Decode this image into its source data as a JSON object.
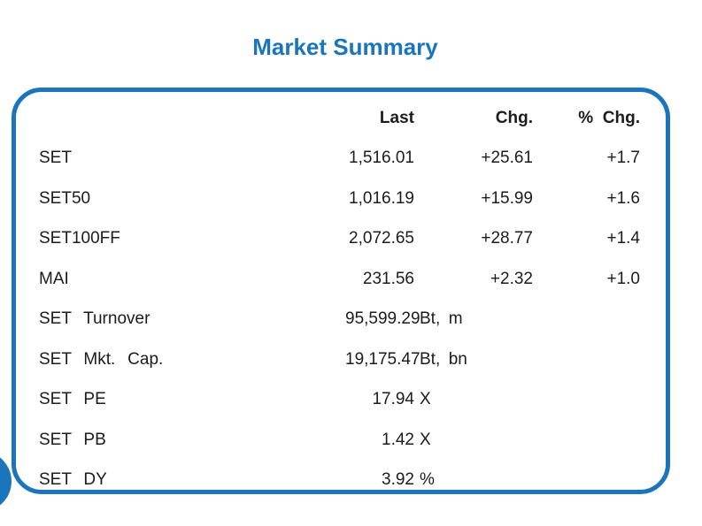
{
  "title": "Market Summary",
  "colors": {
    "accent_blue": "#1B75BC",
    "text": "#1C1C1C"
  },
  "table": {
    "headers": {
      "last": "Last",
      "chg": "Chg.",
      "pct_chg": "% Chg."
    },
    "rows": [
      {
        "label": "SET",
        "last": "1,516.01",
        "unit": "",
        "chg": "+25.61",
        "pct_chg": "+1.7"
      },
      {
        "label": "SET50",
        "last": "1,016.19",
        "unit": "",
        "chg": "+15.99",
        "pct_chg": "+1.6"
      },
      {
        "label": "SET100FF",
        "last": "2,072.65",
        "unit": "",
        "chg": "+28.77",
        "pct_chg": "+1.4"
      },
      {
        "label": "MAI",
        "last": "231.56",
        "unit": "",
        "chg": "+2.32",
        "pct_chg": "+1.0"
      },
      {
        "label": "SET Turnover",
        "last": "95,599.29",
        "unit": "Bt, m",
        "chg": "",
        "pct_chg": ""
      },
      {
        "label": "SET Mkt. Cap.",
        "last": "19,175.47",
        "unit": "Bt, bn",
        "chg": "",
        "pct_chg": ""
      },
      {
        "label": "SET PE",
        "last": "17.94",
        "unit": "X",
        "chg": "",
        "pct_chg": ""
      },
      {
        "label": "SET PB",
        "last": "1.42",
        "unit": "X",
        "chg": "",
        "pct_chg": ""
      },
      {
        "label": "SET DY",
        "last": "3.92",
        "unit": "%",
        "chg": "",
        "pct_chg": ""
      }
    ]
  }
}
